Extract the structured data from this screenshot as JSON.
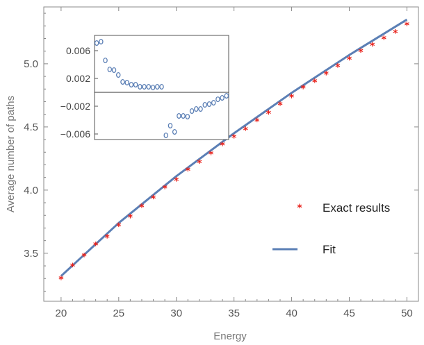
{
  "chart_data": {
    "type": "scatter",
    "xlabel": "Energy",
    "ylabel": "Average number of paths",
    "xlim": [
      18.5,
      51
    ],
    "ylim": [
      3.12,
      5.45
    ],
    "x_ticks": [
      "20",
      "25",
      "30",
      "35",
      "40",
      "45",
      "50"
    ],
    "y_ticks": [
      "3.5",
      "4.0",
      "4.5",
      "5.0"
    ],
    "colors": {
      "exact": "#e8221c",
      "fit": "#5b7fb5",
      "residual": "#5b7fb5"
    },
    "legend_position": "right",
    "series": [
      {
        "name": "Exact results",
        "kind": "scatter",
        "marker": "star",
        "x": [
          20,
          21,
          22,
          23,
          24,
          25,
          26,
          27,
          28,
          29,
          30,
          31,
          32,
          33,
          34,
          35,
          36,
          37,
          38,
          39,
          40,
          41,
          42,
          43,
          44,
          45,
          46,
          47,
          48,
          49,
          50
        ],
        "values": [
          3.31,
          3.41,
          3.49,
          3.58,
          3.64,
          3.73,
          3.8,
          3.88,
          3.95,
          4.03,
          4.09,
          4.17,
          4.23,
          4.3,
          4.37,
          4.43,
          4.49,
          4.56,
          4.62,
          4.69,
          4.75,
          4.82,
          4.87,
          4.93,
          4.99,
          5.05,
          5.11,
          5.16,
          5.21,
          5.26,
          5.32
        ]
      },
      {
        "name": "Fit",
        "kind": "line",
        "x": [
          20,
          25,
          30,
          35,
          40,
          45,
          50
        ],
        "values": [
          3.32,
          3.74,
          4.11,
          4.45,
          4.77,
          5.07,
          5.35
        ]
      }
    ],
    "inset": {
      "type": "scatter",
      "xlim": [
        19.5,
        50.5
      ],
      "ylim": [
        -0.0068,
        0.0082
      ],
      "y_ticks": [
        "0.006",
        "0.002",
        "−0.002",
        "−0.006"
      ],
      "zero_line": true,
      "series": [
        {
          "name": "",
          "marker": "open-circle",
          "x": [
            20,
            21,
            22,
            23,
            24,
            25,
            26,
            27,
            28,
            29,
            30,
            31,
            32,
            33,
            34,
            35,
            36,
            37,
            38,
            39,
            40,
            41,
            42,
            43,
            44,
            45,
            46,
            47,
            48,
            49,
            50
          ],
          "values": [
            0.0071,
            0.0073,
            0.0046,
            0.0033,
            0.0032,
            0.0025,
            0.0015,
            0.0014,
            0.0011,
            0.0011,
            0.0008,
            0.0008,
            0.0008,
            0.0007,
            0.0008,
            0.0008,
            -0.0062,
            -0.0048,
            -0.0057,
            -0.0034,
            -0.0034,
            -0.0035,
            -0.0027,
            -0.0024,
            -0.0024,
            -0.0018,
            -0.0017,
            -0.0015,
            -0.001,
            -0.0008,
            -0.0005
          ]
        }
      ]
    }
  }
}
